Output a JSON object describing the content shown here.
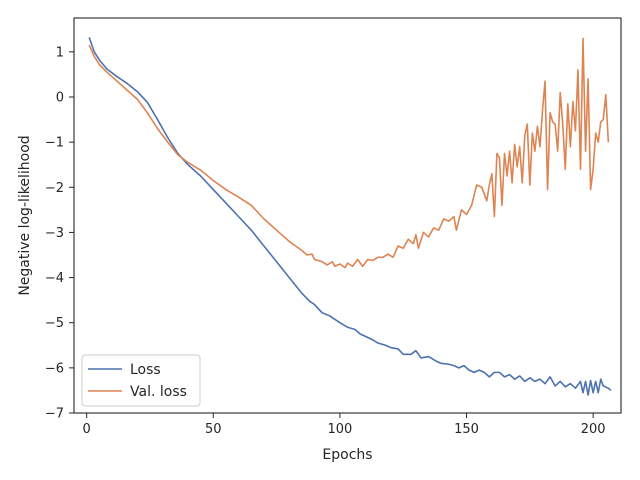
{
  "chart_data": {
    "type": "line",
    "title": "",
    "xlabel": "Epochs",
    "ylabel": "Negative log-likelihood",
    "xlim": [
      -5,
      211
    ],
    "ylim": [
      -7,
      1.75
    ],
    "xticks": [
      0,
      50,
      100,
      150,
      200
    ],
    "yticks": [
      -7,
      -6,
      -5,
      -4,
      -3,
      -2,
      -1,
      0,
      1
    ],
    "grid": false,
    "legend_position": "lower-left",
    "series": [
      {
        "name": "Loss",
        "color": "#4c72b0",
        "points": [
          [
            1,
            1.32
          ],
          [
            3,
            1.0
          ],
          [
            5,
            0.82
          ],
          [
            8,
            0.62
          ],
          [
            12,
            0.45
          ],
          [
            16,
            0.3
          ],
          [
            20,
            0.12
          ],
          [
            24,
            -0.12
          ],
          [
            28,
            -0.5
          ],
          [
            32,
            -0.9
          ],
          [
            36,
            -1.25
          ],
          [
            40,
            -1.5
          ],
          [
            45,
            -1.75
          ],
          [
            50,
            -2.05
          ],
          [
            55,
            -2.35
          ],
          [
            60,
            -2.65
          ],
          [
            65,
            -2.95
          ],
          [
            70,
            -3.3
          ],
          [
            75,
            -3.65
          ],
          [
            80,
            -4.0
          ],
          [
            85,
            -4.35
          ],
          [
            88,
            -4.52
          ],
          [
            90,
            -4.6
          ],
          [
            93,
            -4.78
          ],
          [
            96,
            -4.85
          ],
          [
            100,
            -5.0
          ],
          [
            103,
            -5.1
          ],
          [
            106,
            -5.15
          ],
          [
            108,
            -5.25
          ],
          [
            110,
            -5.3
          ],
          [
            113,
            -5.38
          ],
          [
            115,
            -5.45
          ],
          [
            118,
            -5.5
          ],
          [
            120,
            -5.55
          ],
          [
            123,
            -5.58
          ],
          [
            125,
            -5.7
          ],
          [
            128,
            -5.7
          ],
          [
            130,
            -5.62
          ],
          [
            132,
            -5.78
          ],
          [
            135,
            -5.75
          ],
          [
            138,
            -5.85
          ],
          [
            140,
            -5.9
          ],
          [
            143,
            -5.92
          ],
          [
            145,
            -5.95
          ],
          [
            147,
            -6.0
          ],
          [
            149,
            -5.95
          ],
          [
            151,
            -6.05
          ],
          [
            153,
            -6.1
          ],
          [
            155,
            -6.05
          ],
          [
            157,
            -6.1
          ],
          [
            159,
            -6.2
          ],
          [
            161,
            -6.1
          ],
          [
            163,
            -6.1
          ],
          [
            165,
            -6.2
          ],
          [
            167,
            -6.15
          ],
          [
            169,
            -6.25
          ],
          [
            171,
            -6.18
          ],
          [
            173,
            -6.3
          ],
          [
            175,
            -6.22
          ],
          [
            177,
            -6.3
          ],
          [
            179,
            -6.25
          ],
          [
            181,
            -6.35
          ],
          [
            183,
            -6.2
          ],
          [
            185,
            -6.4
          ],
          [
            187,
            -6.3
          ],
          [
            189,
            -6.42
          ],
          [
            191,
            -6.35
          ],
          [
            193,
            -6.45
          ],
          [
            195,
            -6.3
          ],
          [
            196,
            -6.55
          ],
          [
            197,
            -6.3
          ],
          [
            198,
            -6.6
          ],
          [
            199,
            -6.28
          ],
          [
            200,
            -6.55
          ],
          [
            201,
            -6.3
          ],
          [
            202,
            -6.55
          ],
          [
            203,
            -6.25
          ],
          [
            204,
            -6.4
          ],
          [
            206,
            -6.45
          ],
          [
            207,
            -6.5
          ]
        ]
      },
      {
        "name": "Val. loss",
        "color": "#dd8452",
        "points": [
          [
            1,
            1.15
          ],
          [
            3,
            0.9
          ],
          [
            5,
            0.72
          ],
          [
            8,
            0.55
          ],
          [
            12,
            0.35
          ],
          [
            16,
            0.15
          ],
          [
            20,
            -0.05
          ],
          [
            24,
            -0.35
          ],
          [
            28,
            -0.7
          ],
          [
            32,
            -1.0
          ],
          [
            36,
            -1.28
          ],
          [
            40,
            -1.45
          ],
          [
            45,
            -1.62
          ],
          [
            50,
            -1.85
          ],
          [
            55,
            -2.05
          ],
          [
            60,
            -2.22
          ],
          [
            65,
            -2.4
          ],
          [
            70,
            -2.7
          ],
          [
            75,
            -2.95
          ],
          [
            80,
            -3.2
          ],
          [
            85,
            -3.4
          ],
          [
            87,
            -3.5
          ],
          [
            89,
            -3.48
          ],
          [
            90,
            -3.6
          ],
          [
            93,
            -3.65
          ],
          [
            95,
            -3.72
          ],
          [
            97,
            -3.65
          ],
          [
            98,
            -3.75
          ],
          [
            100,
            -3.7
          ],
          [
            102,
            -3.78
          ],
          [
            103,
            -3.68
          ],
          [
            105,
            -3.75
          ],
          [
            107,
            -3.6
          ],
          [
            109,
            -3.75
          ],
          [
            111,
            -3.6
          ],
          [
            113,
            -3.62
          ],
          [
            115,
            -3.55
          ],
          [
            117,
            -3.55
          ],
          [
            119,
            -3.48
          ],
          [
            121,
            -3.55
          ],
          [
            123,
            -3.3
          ],
          [
            125,
            -3.35
          ],
          [
            127,
            -3.15
          ],
          [
            129,
            -3.25
          ],
          [
            130,
            -3.05
          ],
          [
            131,
            -3.35
          ],
          [
            133,
            -3.0
          ],
          [
            135,
            -3.1
          ],
          [
            137,
            -2.9
          ],
          [
            139,
            -2.95
          ],
          [
            141,
            -2.7
          ],
          [
            143,
            -2.75
          ],
          [
            145,
            -2.65
          ],
          [
            146,
            -2.95
          ],
          [
            148,
            -2.5
          ],
          [
            150,
            -2.6
          ],
          [
            152,
            -2.4
          ],
          [
            154,
            -1.95
          ],
          [
            156,
            -2.0
          ],
          [
            158,
            -2.3
          ],
          [
            159,
            -1.95
          ],
          [
            160,
            -1.7
          ],
          [
            161,
            -2.65
          ],
          [
            162,
            -1.25
          ],
          [
            163,
            -1.35
          ],
          [
            164,
            -2.4
          ],
          [
            165,
            -1.25
          ],
          [
            166,
            -1.75
          ],
          [
            167,
            -1.2
          ],
          [
            168,
            -1.9
          ],
          [
            169,
            -1.05
          ],
          [
            170,
            -1.55
          ],
          [
            171,
            -1.1
          ],
          [
            172,
            -1.9
          ],
          [
            173,
            -0.85
          ],
          [
            174,
            -0.6
          ],
          [
            175,
            -1.95
          ],
          [
            176,
            -0.8
          ],
          [
            177,
            -1.2
          ],
          [
            178,
            -0.65
          ],
          [
            179,
            -1.1
          ],
          [
            180,
            -0.3
          ],
          [
            181,
            0.35
          ],
          [
            182,
            -2.05
          ],
          [
            183,
            -0.35
          ],
          [
            184,
            -0.55
          ],
          [
            185,
            -0.6
          ],
          [
            186,
            -1.2
          ],
          [
            187,
            0.1
          ],
          [
            188,
            -0.6
          ],
          [
            189,
            -1.6
          ],
          [
            190,
            -0.15
          ],
          [
            191,
            -1.1
          ],
          [
            192,
            -0.1
          ],
          [
            193,
            -0.75
          ],
          [
            194,
            0.6
          ],
          [
            195,
            -1.6
          ],
          [
            196,
            1.3
          ],
          [
            197,
            -1.2
          ],
          [
            198,
            0.4
          ],
          [
            199,
            -2.05
          ],
          [
            200,
            -1.6
          ],
          [
            201,
            -0.8
          ],
          [
            202,
            -1.0
          ],
          [
            203,
            -0.55
          ],
          [
            204,
            -0.5
          ],
          [
            205,
            0.05
          ],
          [
            206,
            -1.0
          ]
        ]
      }
    ]
  }
}
